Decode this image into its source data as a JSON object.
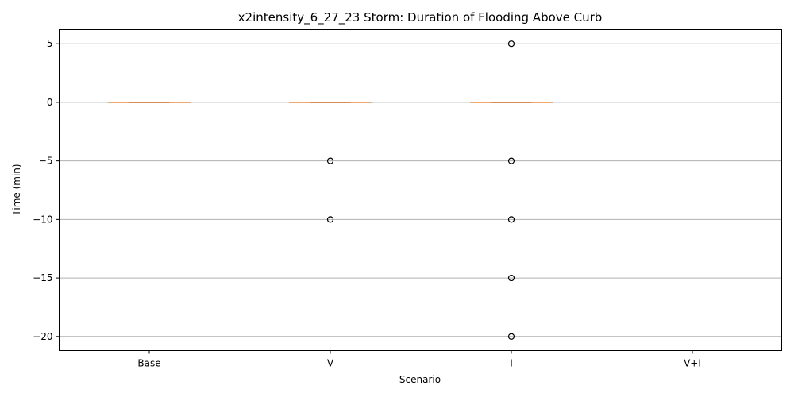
{
  "chart_data": {
    "type": "box",
    "title": "x2intensity_6_27_23 Storm: Duration of Flooding Above Curb",
    "xlabel": "Scenario",
    "ylabel": "Time (min)",
    "categories": [
      "Base",
      "V",
      "I",
      "V+I"
    ],
    "ylim": [
      -21.2,
      6.2
    ],
    "yticks": [
      5,
      0,
      -5,
      -10,
      -15,
      -20
    ],
    "ytick_labels": [
      "5",
      "0",
      "−5",
      "−10",
      "−15",
      "−20"
    ],
    "grid": "horizontal",
    "colors": {
      "median": "#ff7f0e",
      "box": "#000000",
      "grid": "#b0b0b0"
    },
    "boxes": [
      {
        "category": "Base",
        "q1": 0,
        "median": 0,
        "q3": 0,
        "whisker_low": 0,
        "whisker_high": 0,
        "outliers": []
      },
      {
        "category": "V",
        "q1": 0,
        "median": 0,
        "q3": 0,
        "whisker_low": 0,
        "whisker_high": 0,
        "outliers": [
          -5,
          -10
        ]
      },
      {
        "category": "I",
        "q1": 0,
        "median": 0,
        "q3": 0,
        "whisker_low": 0,
        "whisker_high": 0,
        "outliers": [
          5,
          -5,
          -10,
          -15,
          -20
        ]
      },
      {
        "category": "V+I",
        "q1": null,
        "median": null,
        "q3": null,
        "whisker_low": null,
        "whisker_high": null,
        "outliers": []
      }
    ]
  }
}
